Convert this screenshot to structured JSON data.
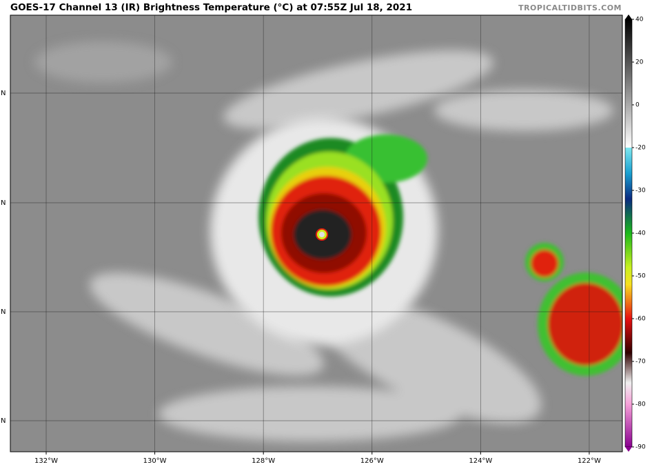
{
  "map": {
    "title": "GOES-17 Channel 13 (IR) Brightness Temperature (°C) at 07:55Z Jul 18, 2021",
    "credit": "TROPICALTIDBITS.COM",
    "lon_lim": [
      -132.66,
      -121.39
    ],
    "lon_ticks": [
      {
        "value": -132,
        "label": "132°W"
      },
      {
        "value": -130,
        "label": "130°W"
      },
      {
        "value": -128,
        "label": "128°W"
      },
      {
        "value": -126,
        "label": "126°W"
      },
      {
        "value": -124,
        "label": "124°W"
      },
      {
        "value": -122,
        "label": "122°W"
      }
    ],
    "lat_labels": [
      "N",
      "N",
      "N",
      "N"
    ],
    "colorbar": {
      "lim": [
        -90,
        40
      ],
      "ticks": [
        40,
        20,
        0,
        -20,
        -30,
        -40,
        -50,
        -60,
        -70,
        -80,
        -90
      ]
    }
  }
}
